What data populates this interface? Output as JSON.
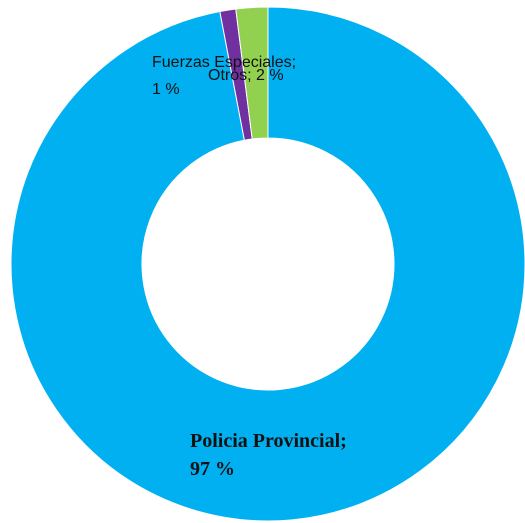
{
  "chart_data": {
    "type": "pie",
    "variant": "donut",
    "slices": [
      {
        "name": "Policia Provincial",
        "value": 97,
        "color": "#00B0F0",
        "label_lines": [
          "Policia Provincial;",
          "97 %"
        ]
      },
      {
        "name": "Fuerzas Especiales",
        "value": 1,
        "color": "#7030A0",
        "label_lines": [
          "Fuerzas Especiales;",
          "1 %"
        ]
      },
      {
        "name": "Otros",
        "value": 2,
        "color": "#92D050",
        "label_lines": [
          "Otros; 2 %"
        ]
      }
    ]
  }
}
